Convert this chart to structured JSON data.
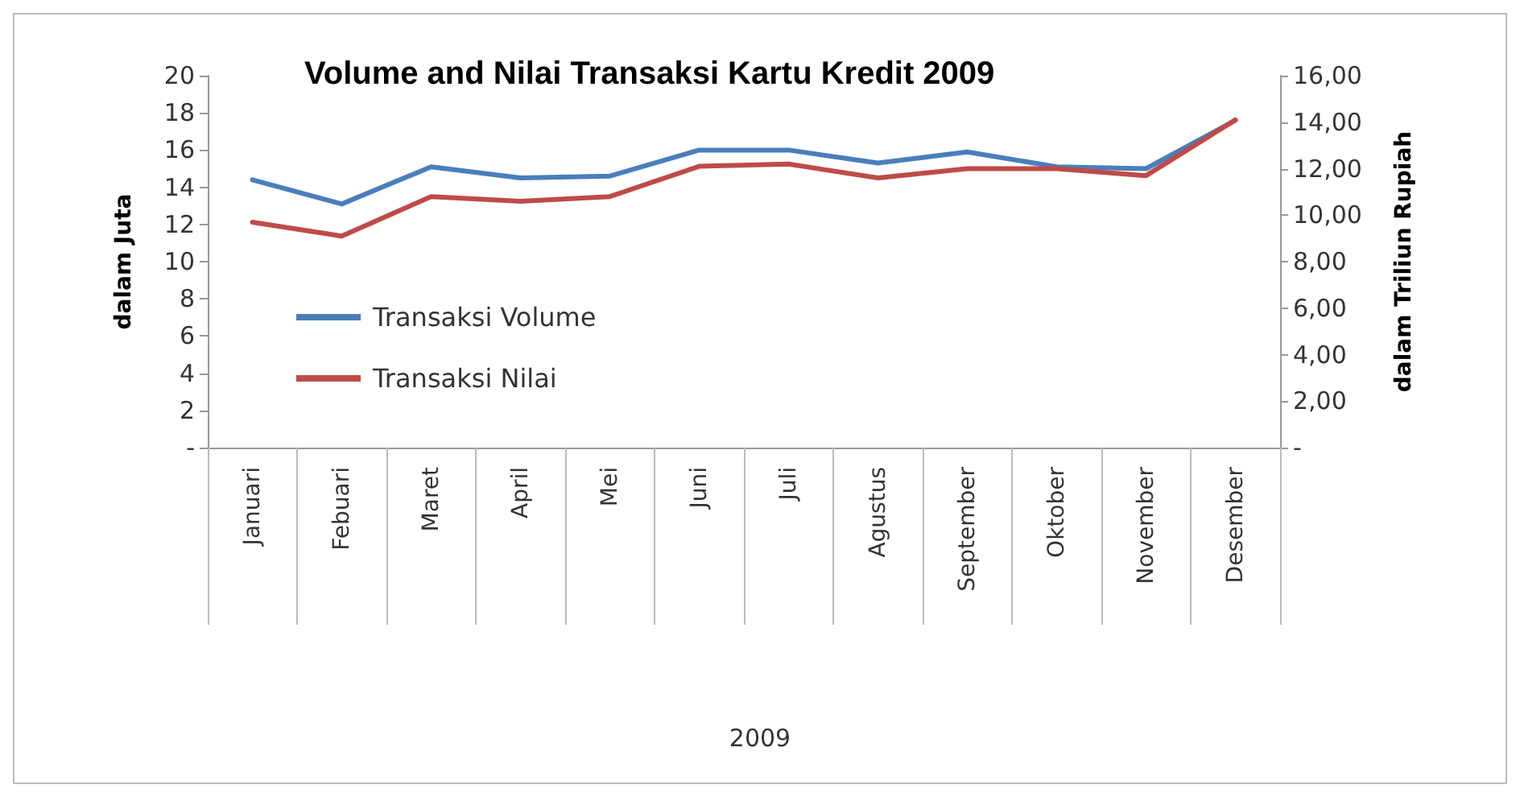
{
  "chart_data": {
    "type": "line",
    "title": "Volume and Nilai Transaksi Kartu Kredit 2009",
    "annotations": [
      "2009"
    ],
    "ylabel": "dalam Juta",
    "y2label": "dalam Triliun Rupiah",
    "categories": [
      "Januari",
      "Febuari",
      "Maret",
      "April",
      "Mei",
      "Juni",
      "Juli",
      "Agustus",
      "September",
      "Oktober",
      "November",
      "Desember"
    ],
    "series": [
      {
        "name": "Transaksi Volume",
        "color": "#4a7ebb",
        "values": [
          14.4,
          13.1,
          15.1,
          14.5,
          14.6,
          16.0,
          16.0,
          15.3,
          15.9,
          15.1,
          15.0,
          17.6
        ]
      },
      {
        "name": "Transaksi Nilai",
        "color": "#be4b48",
        "axis": "y2",
        "values": [
          9.7,
          9.1,
          10.8,
          10.6,
          10.8,
          12.1,
          12.2,
          11.6,
          12.0,
          12.0,
          11.7,
          14.1
        ]
      }
    ],
    "ylim": [
      0,
      20
    ],
    "yticks": [
      {
        "value": 0,
        "label": "-"
      },
      2,
      4,
      6,
      8,
      10,
      12,
      14,
      16,
      18,
      20
    ],
    "y2lim": [
      0,
      16
    ],
    "y2ticks": [
      {
        "value": 0,
        "label": "-"
      },
      {
        "value": 2,
        "label": "2,00"
      },
      {
        "value": 4,
        "label": "4,00"
      },
      {
        "value": 6,
        "label": "6,00"
      },
      {
        "value": 8,
        "label": "8,00"
      },
      {
        "value": 10,
        "label": "10,00"
      },
      {
        "value": 12,
        "label": "12,00"
      },
      {
        "value": 14,
        "label": "14,00"
      },
      {
        "value": 16,
        "label": "16,00"
      }
    ],
    "grid": false,
    "legend": "left",
    "marker": "none",
    "line_style": "solid"
  }
}
